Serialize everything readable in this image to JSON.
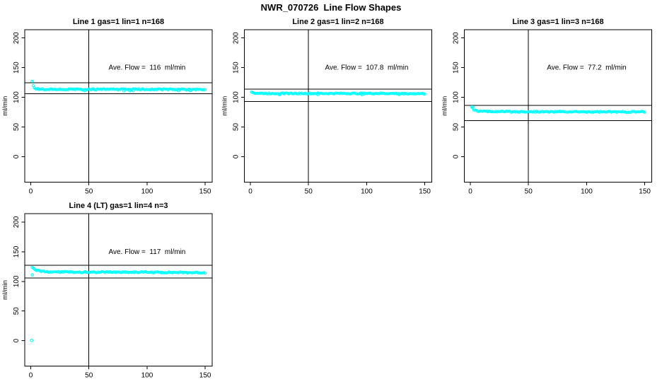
{
  "page_title": "NWR_070726  Line Flow Shapes",
  "chart_data": [
    {
      "type": "scatter",
      "title": "Line 1 gas=1 lin=1 n=168",
      "ylabel": "ml/min",
      "xlabel": "",
      "annotation": "Ave. Flow =  116  ml/min",
      "ave_flow_ml_min": 116,
      "n": 168,
      "point_color": "#00FFFF",
      "xlim": [
        -5.2,
        156
      ],
      "ylim": [
        -43,
        214
      ],
      "xticks": [
        0,
        50,
        100,
        150
      ],
      "yticks": [
        0,
        50,
        100,
        150,
        200
      ],
      "vline_x": 50,
      "hlines": [
        124.5,
        105.8
      ],
      "annotation_pos": [
        100,
        150
      ],
      "series_profile": [
        [
          1,
          126.5
        ],
        [
          2,
          120
        ],
        [
          3,
          116.5
        ],
        [
          4,
          114.8
        ],
        [
          6,
          114
        ],
        [
          12,
          113.6
        ],
        [
          50,
          113.4
        ],
        [
          100,
          113.6
        ],
        [
          150,
          113.1
        ]
      ],
      "extra_points": [
        [
          46,
          111.3
        ],
        [
          80,
          111.0
        ],
        [
          85,
          111.2
        ],
        [
          88,
          111.3
        ],
        [
          127,
          111.4
        ],
        [
          137,
          111.4
        ]
      ],
      "noise_amplitude": 1.0,
      "noise_seed": 7,
      "x_points_range": [
        1,
        150
      ],
      "x_step": 1
    },
    {
      "type": "scatter",
      "title": "Line 2 gas=1 lin=2 n=168",
      "ylabel": "ml/min",
      "xlabel": "",
      "annotation": "Ave. Flow =  107.8  ml/min",
      "ave_flow_ml_min": 107.8,
      "n": 168,
      "point_color": "#00FFFF",
      "xlim": [
        -5.2,
        156
      ],
      "ylim": [
        -43,
        214
      ],
      "xticks": [
        0,
        50,
        100,
        150
      ],
      "yticks": [
        0,
        50,
        100,
        150,
        200
      ],
      "vline_x": 50,
      "hlines": [
        114,
        93
      ],
      "annotation_pos": [
        100,
        150
      ],
      "series_profile": [
        [
          1,
          109.8
        ],
        [
          2,
          108
        ],
        [
          4,
          107
        ],
        [
          10,
          106.7
        ],
        [
          60,
          106.5
        ],
        [
          110,
          106.6
        ],
        [
          150,
          106.2
        ]
      ],
      "extra_points": [
        [
          25,
          104.6
        ],
        [
          58,
          104.8
        ],
        [
          96,
          104.5
        ],
        [
          128,
          104.7
        ]
      ],
      "noise_amplitude": 0.9,
      "noise_seed": 13,
      "x_points_range": [
        1,
        150
      ],
      "x_step": 1
    },
    {
      "type": "scatter",
      "title": "Line 3 gas=1 lin=3 n=168",
      "ylabel": "ml/min",
      "xlabel": "",
      "annotation": "Ave. Flow =  77.2  ml/min",
      "ave_flow_ml_min": 77.2,
      "n": 168,
      "point_color": "#00FFFF",
      "xlim": [
        -5.2,
        156
      ],
      "ylim": [
        -43,
        214
      ],
      "xticks": [
        0,
        50,
        100,
        150
      ],
      "yticks": [
        0,
        50,
        100,
        150,
        200
      ],
      "vline_x": 50,
      "hlines": [
        86.5,
        61
      ],
      "annotation_pos": [
        100,
        150
      ],
      "series_profile": [
        [
          1,
          85
        ],
        [
          2,
          81.5
        ],
        [
          3,
          79
        ],
        [
          4,
          78
        ],
        [
          6,
          77
        ],
        [
          10,
          76.3
        ],
        [
          30,
          75.8
        ],
        [
          150,
          75.4
        ]
      ],
      "extra_points": [
        [
          2,
          83.5
        ]
      ],
      "noise_amplitude": 1.0,
      "noise_seed": 23,
      "x_points_range": [
        1,
        150
      ],
      "x_step": 1
    },
    {
      "type": "scatter",
      "title": "Line 4 (LT) gas=1 lin=4 n=3",
      "ylabel": "ml/min",
      "xlabel": "",
      "annotation": "Ave. Flow =  117  ml/min",
      "ave_flow_ml_min": 117,
      "n": 3,
      "point_color": "#00FFFF",
      "xlim": [
        -5.2,
        156
      ],
      "ylim": [
        -43,
        214
      ],
      "xticks": [
        0,
        50,
        100,
        150
      ],
      "yticks": [
        0,
        50,
        100,
        150,
        200
      ],
      "vline_x": 50,
      "hlines": [
        127,
        105.5
      ],
      "annotation_pos": [
        100,
        150
      ],
      "series_profile": [
        [
          1,
          123.5
        ],
        [
          2,
          122
        ],
        [
          3,
          120.5
        ],
        [
          5,
          118.5
        ],
        [
          8,
          117.2
        ],
        [
          14,
          116.2
        ],
        [
          40,
          115.6
        ],
        [
          80,
          115.8
        ],
        [
          120,
          115.2
        ],
        [
          150,
          114.8
        ]
      ],
      "extra_points": [
        [
          0.7,
          0.5
        ],
        [
          1.3,
          111
        ]
      ],
      "noise_amplitude": 1.1,
      "noise_seed": 31,
      "x_points_range": [
        1,
        150
      ],
      "x_step": 1
    }
  ]
}
